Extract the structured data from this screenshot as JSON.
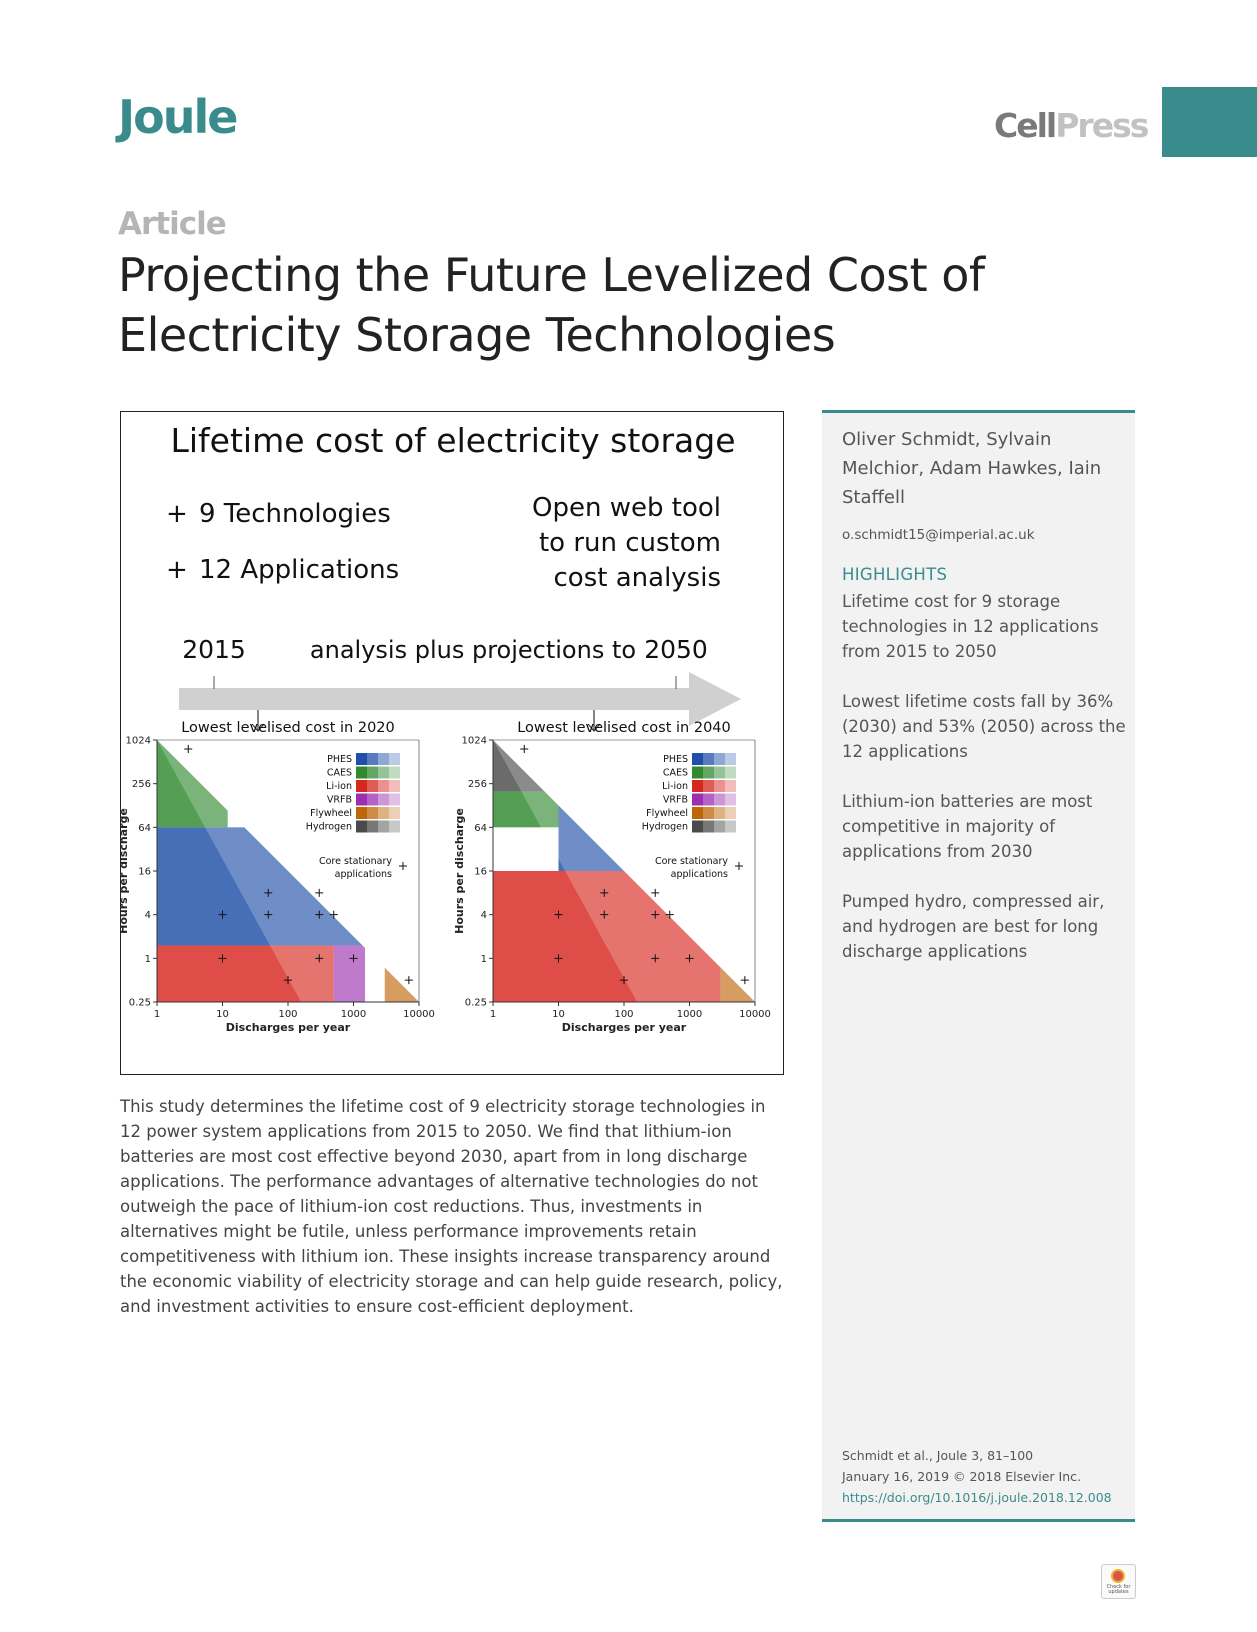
{
  "header": {
    "journal": "Joule",
    "publisher_a": "Cell",
    "publisher_b": "Press",
    "article_type": "Article",
    "title_line1": "Projecting the Future Levelized Cost of",
    "title_line2": "Electricity Storage Technologies"
  },
  "colors": {
    "accent": "#3a8c8c",
    "sidebar_bg": "#f2f2f2"
  },
  "graphical_abstract": {
    "heading": "Lifetime cost of electricity storage",
    "bullet1": "9 Technologies",
    "bullet2": "12 Applications",
    "bullet_mark": "+",
    "webtool": [
      "Open web tool",
      "to run custom",
      "cost analysis"
    ],
    "timeline": {
      "start": "2015",
      "middle": "analysis plus projections to",
      "end": "2050"
    }
  },
  "chart_data": [
    {
      "type": "heatmap",
      "title": "Lowest levelised cost in 2020",
      "xlabel": "Discharges per year",
      "ylabel": "Hours per discharge",
      "x_scale": "log",
      "y_scale": "log",
      "xlim": [
        1,
        10000
      ],
      "ylim": [
        0.25,
        1024
      ],
      "x_ticks": [
        "1",
        "10",
        "100",
        "1000",
        "10000"
      ],
      "y_ticks": [
        "0.25",
        "1",
        "4",
        "16",
        "64",
        "256",
        "1024"
      ],
      "legend": [
        "PHES",
        "CAES",
        "Li-ion",
        "VRFB",
        "Flywheel",
        "Hydrogen"
      ],
      "legend_colors": [
        "#1f4fa8",
        "#2f8a2f",
        "#d7261e",
        "#9b2fae",
        "#c0650a",
        "#4a4a4a"
      ],
      "marker_label": "Core stationary applications",
      "regions": [
        {
          "technology": "CAES",
          "x": [
            1,
            12
          ],
          "y": [
            64,
            1024
          ]
        },
        {
          "technology": "PHES",
          "x": [
            1,
            3000
          ],
          "y": [
            1.5,
            64
          ]
        },
        {
          "technology": "Li-ion",
          "x": [
            1,
            500
          ],
          "y": [
            0.25,
            1.5
          ]
        },
        {
          "technology": "VRFB",
          "x": [
            500,
            1500
          ],
          "y": [
            0.25,
            1.5
          ]
        },
        {
          "technology": "Flywheel",
          "x": [
            3000,
            10000
          ],
          "y": [
            0.25,
            1
          ]
        }
      ],
      "applications": [
        {
          "x": 3,
          "y": 768
        },
        {
          "x": 10,
          "y": 4
        },
        {
          "x": 10,
          "y": 1
        },
        {
          "x": 50,
          "y": 8
        },
        {
          "x": 50,
          "y": 4
        },
        {
          "x": 100,
          "y": 0.5
        },
        {
          "x": 300,
          "y": 8
        },
        {
          "x": 300,
          "y": 4
        },
        {
          "x": 300,
          "y": 1
        },
        {
          "x": 500,
          "y": 4
        },
        {
          "x": 1000,
          "y": 1
        },
        {
          "x": 7000,
          "y": 0.5
        }
      ]
    },
    {
      "type": "heatmap",
      "title": "Lowest levelised cost in 2040",
      "xlabel": "Discharges per year",
      "ylabel": "Hours per discharge",
      "x_scale": "log",
      "y_scale": "log",
      "xlim": [
        1,
        10000
      ],
      "ylim": [
        0.25,
        1024
      ],
      "x_ticks": [
        "1",
        "10",
        "100",
        "1000",
        "10000"
      ],
      "y_ticks": [
        "0.25",
        "1",
        "4",
        "16",
        "64",
        "256",
        "1024"
      ],
      "legend": [
        "PHES",
        "CAES",
        "Li-ion",
        "VRFB",
        "Flywheel",
        "Hydrogen"
      ],
      "legend_colors": [
        "#1f4fa8",
        "#2f8a2f",
        "#d7261e",
        "#9b2fae",
        "#c0650a",
        "#4a4a4a"
      ],
      "marker_label": "Core stationary applications",
      "regions": [
        {
          "technology": "Hydrogen",
          "x": [
            1,
            40
          ],
          "y": [
            200,
            1024
          ]
        },
        {
          "technology": "CAES",
          "x": [
            1,
            10
          ],
          "y": [
            64,
            200
          ]
        },
        {
          "technology": "PHES",
          "x": [
            10,
            500
          ],
          "y": [
            16,
            200
          ]
        },
        {
          "technology": "Li-ion",
          "x": [
            1,
            3000
          ],
          "y": [
            0.25,
            16
          ]
        },
        {
          "technology": "Flywheel",
          "x": [
            3000,
            10000
          ],
          "y": [
            0.25,
            1
          ]
        }
      ],
      "applications": [
        {
          "x": 3,
          "y": 768
        },
        {
          "x": 10,
          "y": 4
        },
        {
          "x": 10,
          "y": 1
        },
        {
          "x": 50,
          "y": 8
        },
        {
          "x": 50,
          "y": 4
        },
        {
          "x": 100,
          "y": 0.5
        },
        {
          "x": 300,
          "y": 8
        },
        {
          "x": 300,
          "y": 4
        },
        {
          "x": 300,
          "y": 1
        },
        {
          "x": 500,
          "y": 4
        },
        {
          "x": 1000,
          "y": 1
        },
        {
          "x": 7000,
          "y": 0.5
        }
      ]
    }
  ],
  "abstract": "This study determines the lifetime cost of 9 electricity storage technologies in 12 power system applications from 2015 to 2050. We find that lithium-ion batteries are most cost effective beyond 2030, apart from in long discharge applications. The performance advantages of alternative technologies do not outweigh the pace of lithium-ion cost reductions. Thus, investments in alternatives might be futile, unless performance improvements retain competitiveness with lithium ion. These insights increase transparency around the economic viability of electricity storage and can help guide research, policy, and investment activities to ensure cost-efficient deployment.",
  "sidebar": {
    "authors": "Oliver Schmidt, Sylvain Melchior, Adam Hawkes, Iain Staffell",
    "email": "o.schmidt15@imperial.ac.uk",
    "highlights_heading": "HIGHLIGHTS",
    "highlights": [
      "Lifetime cost for 9 storage technologies in 12 applications from 2015 to 2050",
      "Lowest lifetime costs fall by 36% (2030) and 53% (2050) across the 12 applications",
      "Lithium-ion batteries are most competitive in majority of applications from 2030",
      "Pumped hydro, compressed air, and hydrogen are best for long discharge applications"
    ],
    "citation": "Schmidt et al., Joule 3, 81–100",
    "date": "January 16, 2019 © 2018 Elsevier Inc.",
    "doi": "https://doi.org/10.1016/j.joule.2018.12.008"
  },
  "badge": {
    "text": "Check for updates",
    "icon": "check-for-updates-icon"
  }
}
